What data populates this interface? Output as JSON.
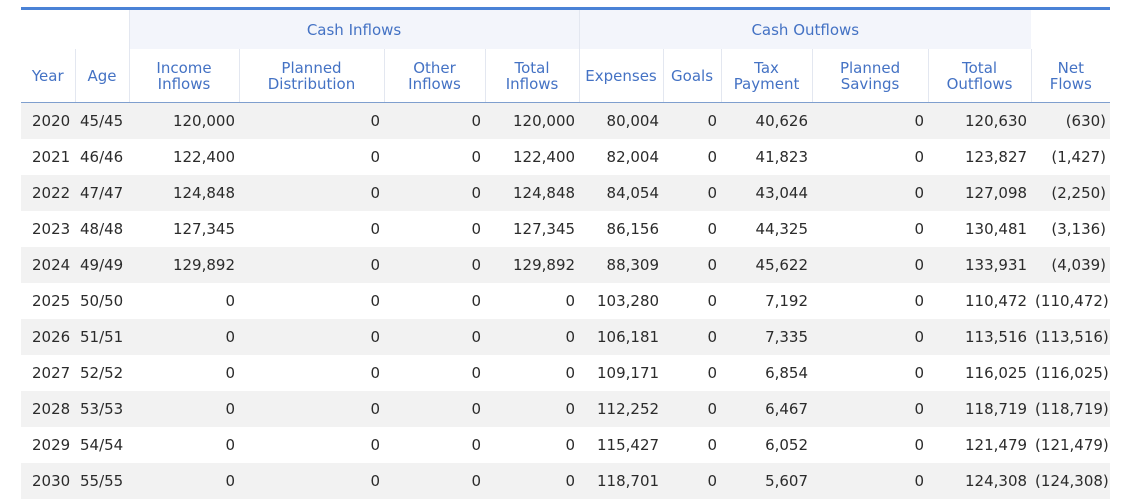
{
  "groups": {
    "inflows": "Cash Inflows",
    "outflows": "Cash Outflows"
  },
  "columns": [
    [
      "Year"
    ],
    [
      "Age"
    ],
    [
      "Income",
      "Inflows"
    ],
    [
      "Planned",
      "Distribution"
    ],
    [
      "Other",
      "Inflows"
    ],
    [
      "Total",
      "Inflows"
    ],
    [
      "Expenses"
    ],
    [
      "Goals"
    ],
    [
      "Tax",
      "Payment"
    ],
    [
      "Planned",
      "Savings"
    ],
    [
      "Total",
      "Outflows"
    ],
    [
      "Net",
      "Flows"
    ]
  ],
  "rows": [
    [
      "2020",
      "45/45",
      "120,000",
      "0",
      "0",
      "120,000",
      "80,004",
      "0",
      "40,626",
      "0",
      "120,630",
      "(630)"
    ],
    [
      "2021",
      "46/46",
      "122,400",
      "0",
      "0",
      "122,400",
      "82,004",
      "0",
      "41,823",
      "0",
      "123,827",
      "(1,427)"
    ],
    [
      "2022",
      "47/47",
      "124,848",
      "0",
      "0",
      "124,848",
      "84,054",
      "0",
      "43,044",
      "0",
      "127,098",
      "(2,250)"
    ],
    [
      "2023",
      "48/48",
      "127,345",
      "0",
      "0",
      "127,345",
      "86,156",
      "0",
      "44,325",
      "0",
      "130,481",
      "(3,136)"
    ],
    [
      "2024",
      "49/49",
      "129,892",
      "0",
      "0",
      "129,892",
      "88,309",
      "0",
      "45,622",
      "0",
      "133,931",
      "(4,039)"
    ],
    [
      "2025",
      "50/50",
      "0",
      "0",
      "0",
      "0",
      "103,280",
      "0",
      "7,192",
      "0",
      "110,472",
      "(110,472)"
    ],
    [
      "2026",
      "51/51",
      "0",
      "0",
      "0",
      "0",
      "106,181",
      "0",
      "7,335",
      "0",
      "113,516",
      "(113,516)"
    ],
    [
      "2027",
      "52/52",
      "0",
      "0",
      "0",
      "0",
      "109,171",
      "0",
      "6,854",
      "0",
      "116,025",
      "(116,025)"
    ],
    [
      "2028",
      "53/53",
      "0",
      "0",
      "0",
      "0",
      "112,252",
      "0",
      "6,467",
      "0",
      "118,719",
      "(118,719)"
    ],
    [
      "2029",
      "54/54",
      "0",
      "0",
      "0",
      "0",
      "115,427",
      "0",
      "6,052",
      "0",
      "121,479",
      "(121,479)"
    ],
    [
      "2030",
      "55/55",
      "0",
      "0",
      "0",
      "0",
      "118,701",
      "0",
      "5,607",
      "0",
      "124,308",
      "(124,308)"
    ]
  ],
  "colors": {
    "header_text": "#4472c4",
    "top_rule": "#4a82d6",
    "stripe": "#f2f2f2"
  }
}
